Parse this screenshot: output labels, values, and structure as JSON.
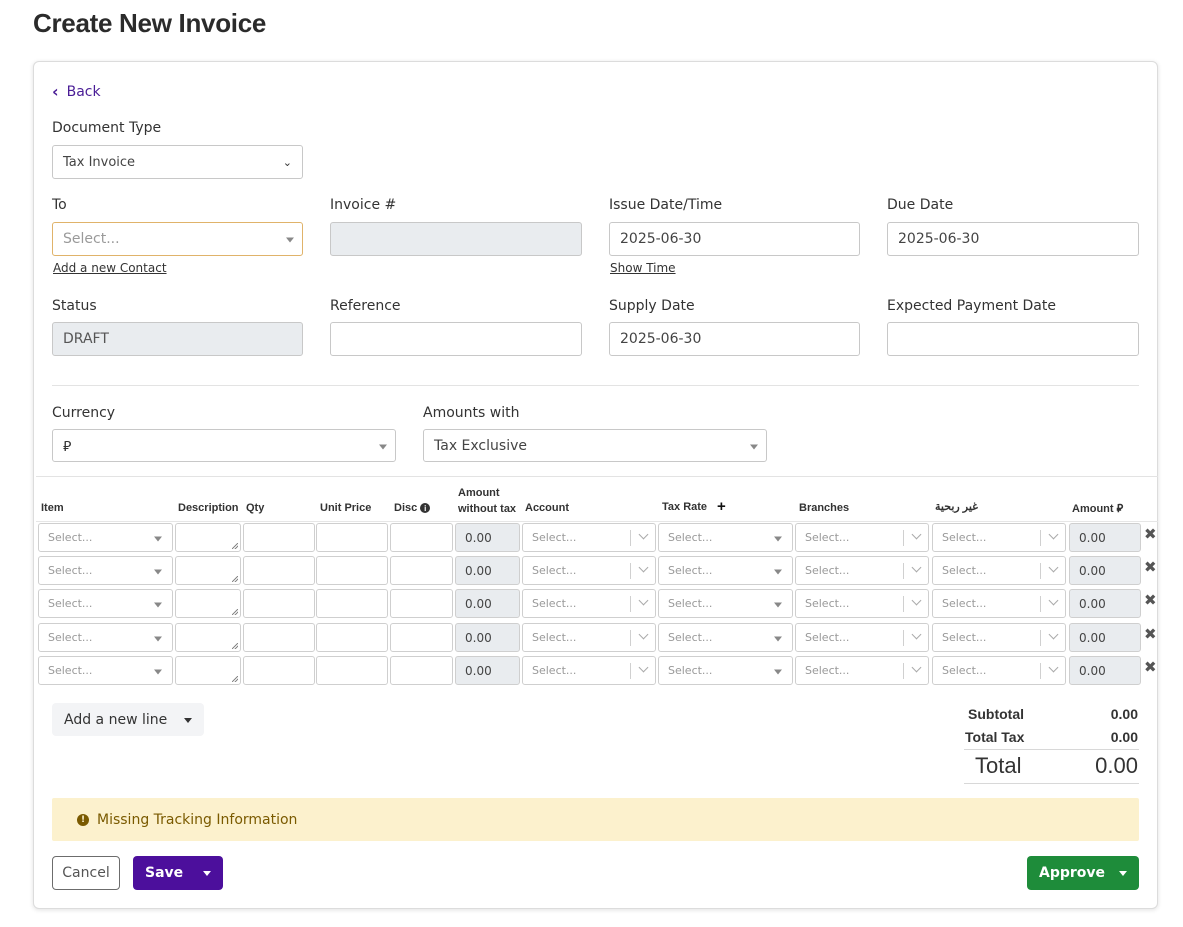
{
  "page": {
    "title": "Create New Invoice"
  },
  "nav": {
    "back_label": "Back"
  },
  "form": {
    "document_type": {
      "label": "Document Type",
      "value": "Tax Invoice"
    },
    "to": {
      "label": "To",
      "placeholder": "Select...",
      "add_contact": "Add a new Contact"
    },
    "invoice_no": {
      "label": "Invoice #",
      "value": ""
    },
    "issue_date": {
      "label": "Issue Date/Time",
      "value": "2025-06-30",
      "show_time": "Show Time"
    },
    "due_date": {
      "label": "Due Date",
      "value": "2025-06-30"
    },
    "status": {
      "label": "Status",
      "value": "DRAFT"
    },
    "reference": {
      "label": "Reference",
      "value": ""
    },
    "supply_date": {
      "label": "Supply Date",
      "value": "2025-06-30"
    },
    "expected_payment_date": {
      "label": "Expected Payment Date",
      "value": ""
    },
    "currency": {
      "label": "Currency",
      "value": "⃁"
    },
    "amounts_with": {
      "label": "Amounts with",
      "value": "Tax Exclusive"
    }
  },
  "table": {
    "headers": {
      "item": "Item",
      "description": "Description",
      "qty": "Qty",
      "unit_price": "Unit Price",
      "disc": "Disc",
      "amount_wo_tax_1": "Amount",
      "amount_wo_tax_2": "without tax",
      "account": "Account",
      "tax_rate": "Tax Rate",
      "branches": "Branches",
      "non_profit": "غير ربحية",
      "amount": "Amount ⃁"
    },
    "placeholder": "Select...",
    "rows": [
      {
        "amount_wo_tax": "0.00",
        "amount": "0.00"
      },
      {
        "amount_wo_tax": "0.00",
        "amount": "0.00"
      },
      {
        "amount_wo_tax": "0.00",
        "amount": "0.00"
      },
      {
        "amount_wo_tax": "0.00",
        "amount": "0.00"
      },
      {
        "amount_wo_tax": "0.00",
        "amount": "0.00"
      }
    ]
  },
  "add_line": {
    "label": "Add a new line"
  },
  "totals": {
    "subtotal_label": "Subtotal",
    "subtotal": "0.00",
    "total_tax_label": "Total Tax",
    "total_tax": "0.00",
    "total_label": "Total",
    "total": "0.00"
  },
  "alert": {
    "text": "Missing Tracking Information"
  },
  "actions": {
    "cancel": "Cancel",
    "save": "Save",
    "approve": "Approve"
  },
  "colors": {
    "primary": "#4c0f9c",
    "success": "#1e8c3a",
    "warning_bg": "#fcf1cd",
    "focus_border": "#e0b36a"
  }
}
